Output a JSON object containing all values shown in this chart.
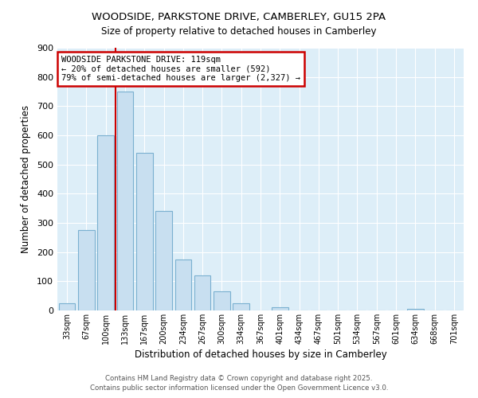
{
  "title": "WOODSIDE, PARKSTONE DRIVE, CAMBERLEY, GU15 2PA",
  "subtitle": "Size of property relative to detached houses in Camberley",
  "xlabel": "Distribution of detached houses by size in Camberley",
  "ylabel": "Number of detached properties",
  "bar_color": "#c8dff0",
  "bar_edge_color": "#7ab0d0",
  "background_color": "#ddeef8",
  "grid_color": "#ffffff",
  "categories": [
    "33sqm",
    "67sqm",
    "100sqm",
    "133sqm",
    "167sqm",
    "200sqm",
    "234sqm",
    "267sqm",
    "300sqm",
    "334sqm",
    "367sqm",
    "401sqm",
    "434sqm",
    "467sqm",
    "501sqm",
    "534sqm",
    "567sqm",
    "601sqm",
    "634sqm",
    "668sqm",
    "701sqm"
  ],
  "values": [
    25,
    275,
    600,
    750,
    540,
    340,
    175,
    120,
    65,
    25,
    0,
    10,
    0,
    0,
    0,
    0,
    0,
    0,
    5,
    0,
    0
  ],
  "ylim": [
    0,
    900
  ],
  "yticks": [
    0,
    100,
    200,
    300,
    400,
    500,
    600,
    700,
    800,
    900
  ],
  "vline_pos": 2.5,
  "vline_color": "#cc0000",
  "annotation_title": "WOODSIDE PARKSTONE DRIVE: 119sqm",
  "annotation_line1": "← 20% of detached houses are smaller (592)",
  "annotation_line2": "79% of semi-detached houses are larger (2,327) →",
  "annotation_box_color": "#ffffff",
  "annotation_box_edge": "#cc0000",
  "footer1": "Contains HM Land Registry data © Crown copyright and database right 2025.",
  "footer2": "Contains public sector information licensed under the Open Government Licence v3.0."
}
